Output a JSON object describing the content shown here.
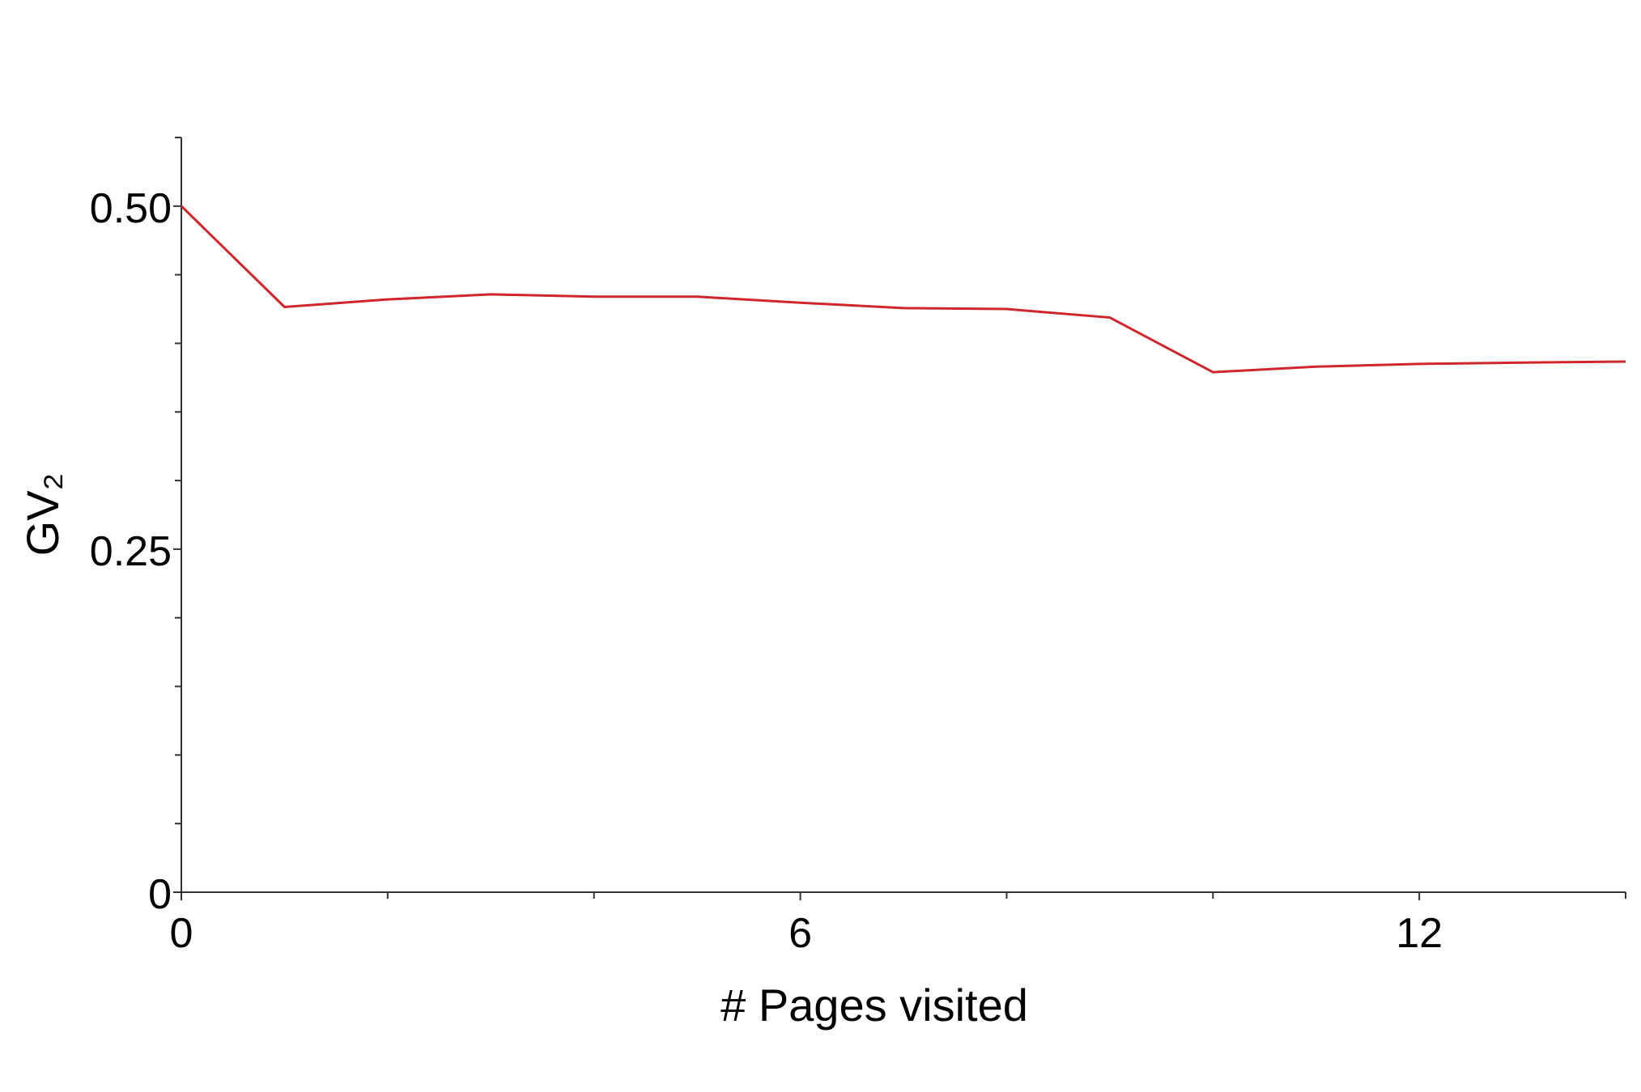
{
  "chart_data": {
    "type": "line",
    "xlabel": "# Pages visited",
    "ylabel": "GV₂",
    "x": [
      0,
      1,
      2,
      3,
      4,
      5,
      6,
      7,
      8,
      9,
      10,
      11,
      12,
      13,
      14
    ],
    "series": [
      {
        "color": "#d0262b",
        "values": [
          0.5,
          0.4265,
          0.432,
          0.4357,
          0.434,
          0.434,
          0.4296,
          0.4257,
          0.425,
          0.4188,
          0.379,
          0.383,
          0.385,
          0.386,
          0.3867
        ]
      }
    ],
    "xlim": [
      0,
      14
    ],
    "ylim": [
      0,
      0.55
    ],
    "xticks": [
      0,
      6,
      12
    ],
    "yticks": [
      0,
      0.25,
      {
        "value": 0.5,
        "label": "0.50"
      }
    ],
    "xminorticks": [
      2,
      4,
      8,
      10,
      14
    ],
    "yminorticks": [
      0.05,
      0.1,
      0.15,
      0.2,
      0.3,
      0.35,
      0.4,
      0.45,
      0.55
    ],
    "grid": false
  }
}
